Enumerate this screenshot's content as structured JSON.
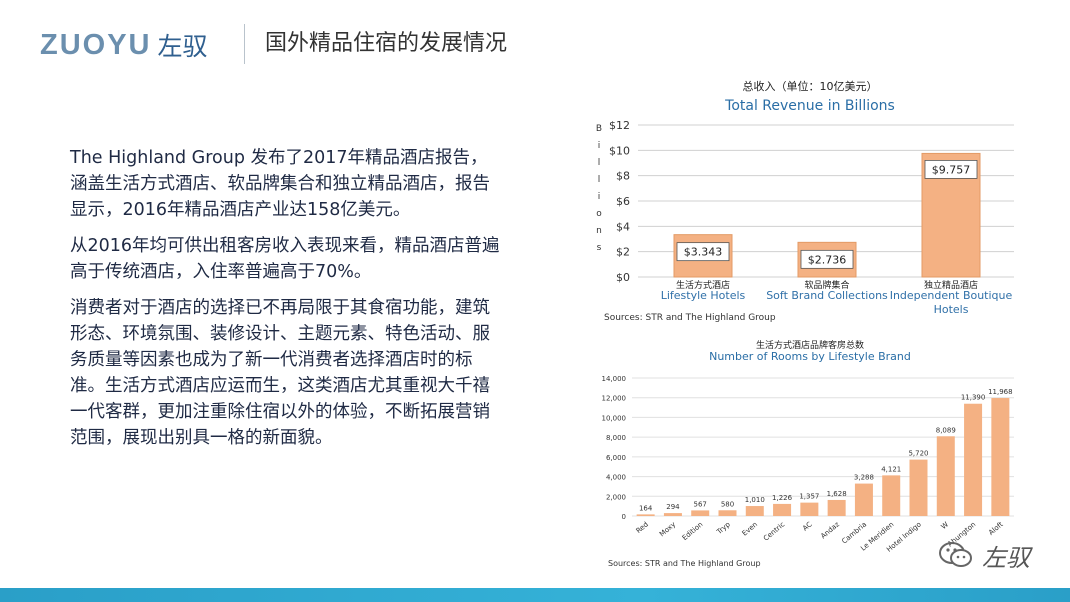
{
  "header": {
    "logo_latin": "ZUOYU",
    "logo_cn": "左驭",
    "title": "国外精品住宿的发展情况"
  },
  "paragraphs": [
    "The Highland Group 发布了2017年精品酒店报告，涵盖生活方式酒店、软品牌集合和独立精品酒店，报告显示，2016年精品酒店产业达158亿美元。",
    "从2016年均可供出租客房收入表现来看，精品酒店普遍高于传统酒店，入住率普遍高于70%。",
    "消费者对于酒店的选择已不再局限于其食宿功能，建筑形态、环境氛围、装修设计、主题元素、特色活动、服务质量等因素也成为了新一代消费者选择酒店时的标准。生活方式酒店应运而生，这类酒店尤其重视大千禧一代客群，更加注重除住宿以外的体验，不断拓展营销范围，展现出别具一格的新面貌。"
  ],
  "chart_data": [
    {
      "type": "bar",
      "title": "总收入（单位：10亿美元）",
      "subtitle": "Total Revenue in Billions",
      "ylabel": "Billions",
      "ylim": [
        0,
        12
      ],
      "yticks": [
        "$0",
        "$2",
        "$4",
        "$6",
        "$8",
        "$10",
        "$12"
      ],
      "categories_cn": [
        "生活方式酒店",
        "软品牌集合",
        "独立精品酒店"
      ],
      "categories": [
        "Lifestyle Hotels",
        "Soft Brand Collections",
        "Independent Boutique Hotels"
      ],
      "values": [
        3.343,
        2.736,
        9.757
      ],
      "value_labels": [
        "$3.343",
        "$2.736",
        "$9.757"
      ],
      "source": "Sources: STR and The Highland Group",
      "bar_color": "#f4b183"
    },
    {
      "type": "bar",
      "title": "生活方式酒店品牌客房总数",
      "subtitle": "Number of Rooms by Lifestyle Brand",
      "ylim": [
        0,
        14000
      ],
      "yticks": [
        "0",
        "2,000",
        "4,000",
        "6,000",
        "8,000",
        "10,000",
        "12,000",
        "14,000"
      ],
      "categories": [
        "Red",
        "Moxy",
        "Edition",
        "Tryp",
        "Even",
        "Centric",
        "AC",
        "Andaz",
        "Cambria",
        "Le Meridien",
        "Hotel Indigo",
        "W",
        "Ahungton",
        "Aloft"
      ],
      "values": [
        164,
        294,
        567,
        580,
        1010,
        1226,
        1357,
        1628,
        3288,
        4121,
        5720,
        8089,
        11390,
        11968
      ],
      "value_labels": [
        "164",
        "294",
        "567",
        "580",
        "1,010",
        "1,226",
        "1,357",
        "1,628",
        "3,288",
        "4,121",
        "5,720",
        "8,089",
        "11,390",
        "11,968"
      ],
      "source": "Sources: STR  and The Highland Group",
      "bar_color": "#f4b183"
    }
  ],
  "watermark": {
    "text": "左驭",
    "icon": "wechat-icon"
  },
  "colors": {
    "accent_bar": "#2aa5cf",
    "title_blue": "#2a6ea6",
    "text": "#1f2a44"
  }
}
